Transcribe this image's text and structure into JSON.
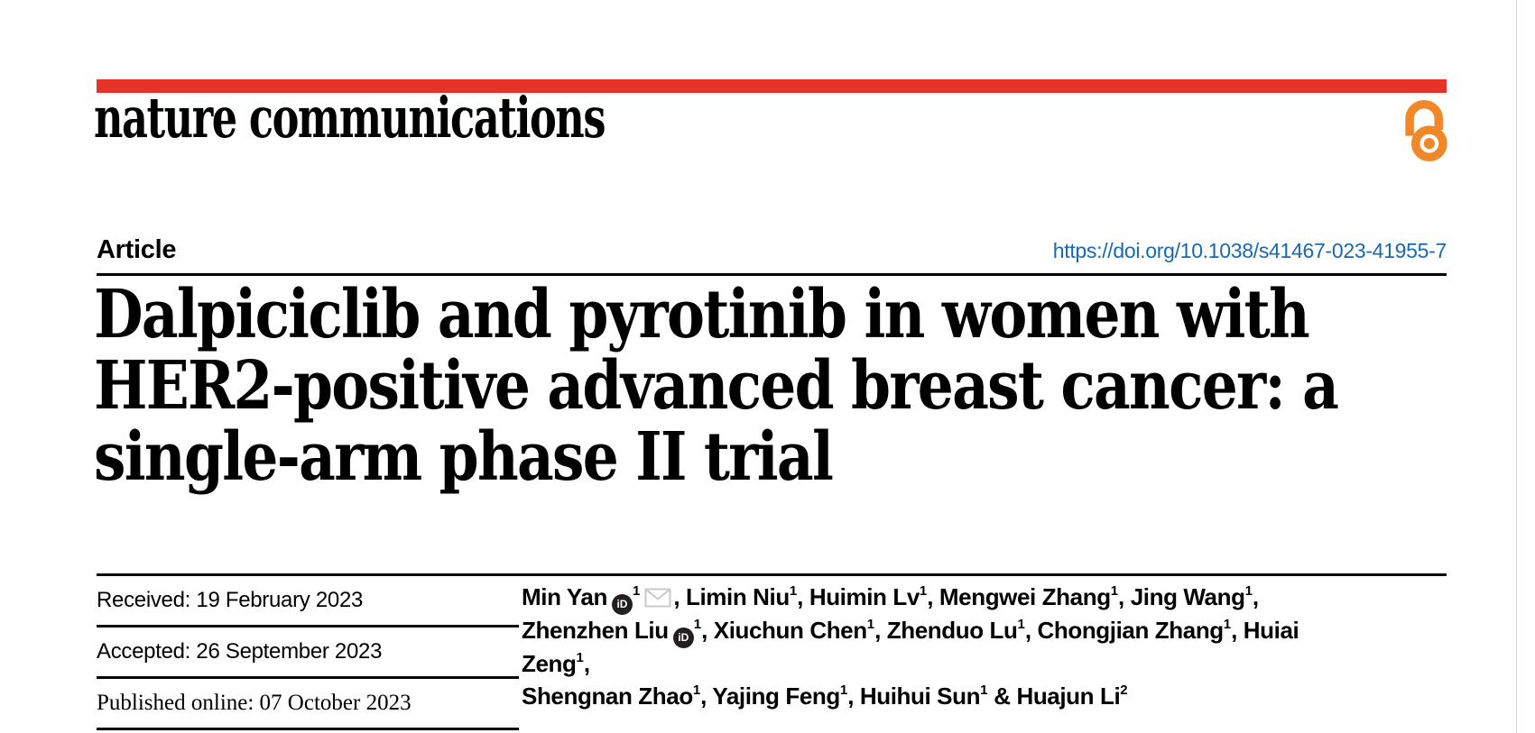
{
  "palette": {
    "accent_red": "#e63228",
    "link_blue": "#1968b3",
    "open_access_orange": "#f0882a",
    "icon_gray": "#c9c9c9",
    "text_black": "#000000"
  },
  "masthead": {
    "journal_wordmark": "nature communications"
  },
  "header": {
    "article_type": "Article",
    "doi_link": "https://doi.org/10.1038/s41467-023-41955-7",
    "title_lines": [
      "Dalpiciclib and pyrotinib in women with",
      "HER2-positive advanced breast cancer: a",
      "single-arm phase II trial"
    ]
  },
  "dates": {
    "received": "Received: 19 February 2023",
    "accepted": "Accepted: 26 September 2023",
    "published": "Published online: 07 October 2023"
  },
  "authors": {
    "separator": ", ",
    "last_separator": " & ",
    "orcid_glyph": "iD",
    "list": [
      {
        "name": "Min Yan",
        "sup": "1",
        "orcid": true,
        "email": true
      },
      {
        "name": "Limin Niu",
        "sup": "1"
      },
      {
        "name": "Huimin Lv",
        "sup": "1"
      },
      {
        "name": "Mengwei Zhang",
        "sup": "1"
      },
      {
        "name": "Jing Wang",
        "sup": "1",
        "break_after": true
      },
      {
        "name": "Zhenzhen Liu",
        "sup": "1",
        "orcid": true
      },
      {
        "name": "Xiuchun Chen",
        "sup": "1"
      },
      {
        "name": "Zhenduo Lu",
        "sup": "1"
      },
      {
        "name": "Chongjian Zhang",
        "sup": "1"
      },
      {
        "name": "Huiai Zeng",
        "sup": "1",
        "break_after": true
      },
      {
        "name": "Shengnan Zhao",
        "sup": "1"
      },
      {
        "name": "Yajing Feng",
        "sup": "1"
      },
      {
        "name": "Huihui Sun",
        "sup": "1"
      },
      {
        "name": "Huajun Li",
        "sup": "2"
      }
    ]
  }
}
